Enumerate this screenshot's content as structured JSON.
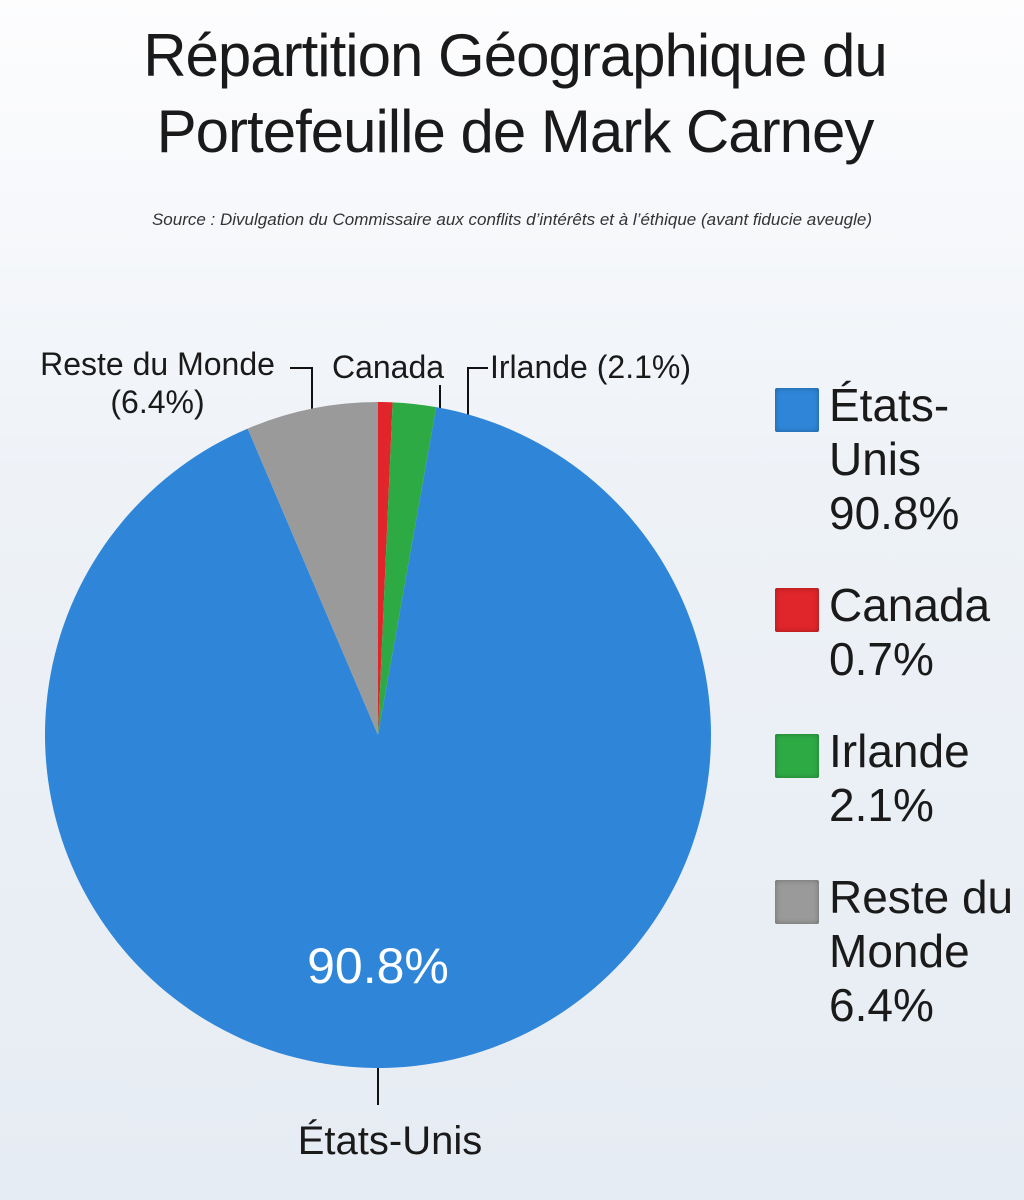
{
  "chart_data": {
    "type": "pie",
    "title": "Répartition Géographique du Portefeuille de Mark Carney",
    "subtitle": "Source : Divulgation du Commissaire aux conflits d’intérêts et à l’éthique (avant fiducie aveugle)",
    "categories": [
      "États-Unis",
      "Canada",
      "Irlande",
      "Reste du Monde"
    ],
    "values": [
      90.8,
      0.7,
      2.1,
      6.4
    ],
    "value_labels": [
      "90.8%",
      "0.7%",
      "2.1%",
      "6.4%"
    ],
    "slice_labels": [
      "États-Unis",
      "Canada",
      "Irlande (2.1%)",
      "Reste du Monde (6.4%)"
    ],
    "colors": [
      "#2f86d8",
      "#e0262b",
      "#2eaa45",
      "#9a9a9a"
    ]
  }
}
